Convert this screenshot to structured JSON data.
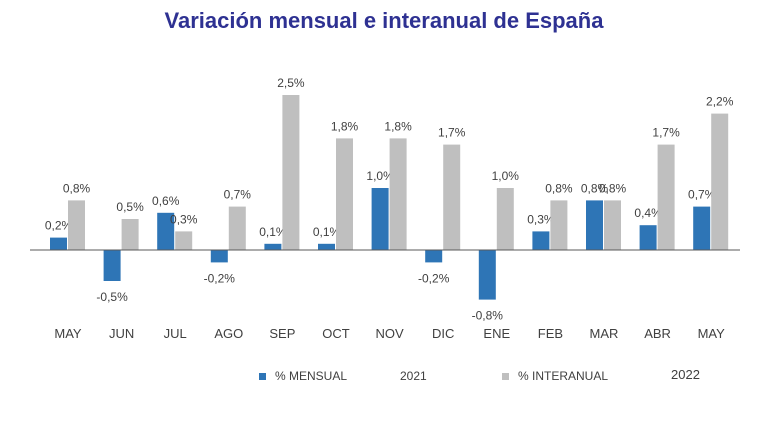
{
  "chart_data": {
    "type": "bar",
    "title": "Variación mensual e interanual de España",
    "categories": [
      "MAY",
      "JUN",
      "JUL",
      "AGO",
      "SEP",
      "OCT",
      "NOV",
      "DIC",
      "ENE",
      "FEB",
      "MAR",
      "ABR",
      "MAY"
    ],
    "series": [
      {
        "name": "% MENSUAL",
        "color": "#2e75b6",
        "values": [
          0.2,
          -0.5,
          0.6,
          -0.2,
          0.1,
          0.1,
          1.0,
          -0.2,
          -0.8,
          0.3,
          0.8,
          0.4,
          0.7
        ],
        "labels": [
          "0,2%",
          "-0,5%",
          "0,6%",
          "-0,2%",
          "0,1%",
          "0,1%",
          "1,0%",
          "-0,2%",
          "-0,8%",
          "0,3%",
          "0,8%",
          "0,4%",
          "0,7%"
        ]
      },
      {
        "name": "% INTERANUAL",
        "color": "#bfbfbf",
        "values": [
          0.8,
          0.5,
          0.3,
          0.7,
          2.5,
          1.8,
          1.8,
          1.7,
          1.0,
          0.8,
          0.8,
          1.7,
          2.2
        ],
        "labels": [
          "0,8%",
          "0,5%",
          "0,3%",
          "0,7%",
          "2,5%",
          "1,8%",
          "1,8%",
          "1,7%",
          "1,0%",
          "0,8%",
          "0,8%",
          "1,7%",
          "2,2%"
        ]
      }
    ],
    "year_labels": [
      "2021",
      "2022"
    ],
    "ylim": [
      -0.8,
      2.5
    ],
    "grid": false,
    "legend_position": "bottom"
  }
}
